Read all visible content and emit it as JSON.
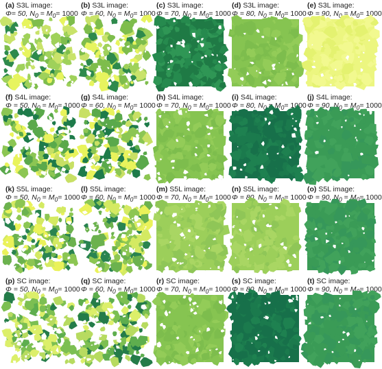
{
  "figure": {
    "panels": [
      {
        "id": "(a)",
        "label": "S3L image:",
        "phi": "Φ= 50,",
        "n": "N",
        "n_sub": "0",
        "eq1": " = ",
        "m": "M",
        "m_sub": "0",
        "eq2": "= 1000",
        "palette": "mixed3",
        "seed": 11,
        "dens": 0.5
      },
      {
        "id": "(b)",
        "label": "S3L  image:",
        "phi": "Φ = 60,",
        "n": "N",
        "n_sub": "0",
        "eq1": " = ",
        "m": "M",
        "m_sub": "0",
        "eq2": "= 1000",
        "palette": "mixed3",
        "seed": 12,
        "dens": 0.6
      },
      {
        "id": "(c)",
        "label": "S3L image:",
        "phi": "Φ = 70,",
        "n": "N",
        "n_sub": "0",
        "eq1": " = ",
        "m": "M",
        "m_sub": "0",
        "eq2": "= 1000",
        "palette": "dark",
        "seed": 13,
        "dens": 0.7
      },
      {
        "id": "(d)",
        "label": "S3L image:",
        "phi": "Φ = 80,",
        "n": "N",
        "n_sub": "0",
        "eq1": " = ",
        "m": "M",
        "m_sub": "0",
        "eq2": "= 1000",
        "palette": "medium",
        "seed": 14,
        "dens": 0.8
      },
      {
        "id": "(e)",
        "label": "S3L image:",
        "phi": "Φ = 90,",
        "n": "N",
        "n_sub": "0",
        "eq1": " = ",
        "m": "M",
        "m_sub": "0",
        "eq2": "= 1000",
        "palette": "yellow",
        "seed": 15,
        "dens": 0.9
      },
      {
        "id": "(f)",
        "label": "S4L image:",
        "phi": "Φ = 50,",
        "n": "N",
        "n_sub": "0",
        "eq1": " = ",
        "m": "M",
        "m_sub": "0",
        "eq2": "= 1000",
        "palette": "mixed4",
        "seed": 21,
        "dens": 0.5
      },
      {
        "id": "(g)",
        "label": "S4L image:",
        "phi": "Φ = 60,",
        "n": "N",
        "n_sub": "0",
        "eq1": " = ",
        "m": "M",
        "m_sub": "0",
        "eq2": "= 1000",
        "palette": "mixed4",
        "seed": 22,
        "dens": 0.6
      },
      {
        "id": "(h)",
        "label": "S4L image:",
        "phi": "Φ = 70,",
        "n": "N",
        "n_sub": "0",
        "eq1": " = ",
        "m": "M",
        "m_sub": "0",
        "eq2": "= 1000",
        "palette": "medium",
        "seed": 23,
        "dens": 0.7
      },
      {
        "id": "(i)",
        "label": "S4L image:",
        "phi": "Φ = 80,",
        "n": "N",
        "n_sub": "0",
        "eq1": " = ",
        "m": "M",
        "m_sub": "0",
        "eq2": "= 1000",
        "palette": "darkest",
        "seed": 24,
        "dens": 0.8
      },
      {
        "id": "(j)",
        "label": "S4L image:",
        "phi": "Φ = 90,",
        "n": "N",
        "n_sub": "0",
        "eq1": " = ",
        "m": "M",
        "m_sub": "0",
        "eq2": "= 1000",
        "palette": "green",
        "seed": 25,
        "dens": 0.9
      },
      {
        "id": "(k)",
        "label": "S5L image:",
        "phi": "Φ = 50,",
        "n": "N",
        "n_sub": "0",
        "eq1": " = ",
        "m": "M",
        "m_sub": "0",
        "eq2": "= 1000",
        "palette": "mixed5",
        "seed": 31,
        "dens": 0.5
      },
      {
        "id": "(l)",
        "label": "S5L image:",
        "phi": "Φ = 60,",
        "n": "N",
        "n_sub": "0",
        "eq1": " = ",
        "m": "M",
        "m_sub": "0",
        "eq2": "= 1000",
        "palette": "mixed5",
        "seed": 32,
        "dens": 0.6
      },
      {
        "id": "(m)",
        "label": "S5L image:",
        "phi": "Φ = 70,",
        "n": "N",
        "n_sub": "0",
        "eq1": " = ",
        "m": "M",
        "m_sub": "0",
        "eq2": "= 1000",
        "palette": "light",
        "seed": 33,
        "dens": 0.7
      },
      {
        "id": "(n)",
        "label": "S5L image:",
        "phi": "Φ = 80,",
        "n": "N",
        "n_sub": "0",
        "eq1": " = ",
        "m": "M",
        "m_sub": "0",
        "eq2": "= 1000",
        "palette": "light",
        "seed": 34,
        "dens": 0.8
      },
      {
        "id": "(o)",
        "label": "S5L image:",
        "phi": "Φ = 90,",
        "n": "N",
        "n_sub": "0",
        "eq1": " = ",
        "m": "M",
        "m_sub": "0",
        "eq2": "= 1000",
        "palette": "green",
        "seed": 35,
        "dens": 0.9
      },
      {
        "id": "(p)",
        "label": "SC image:",
        "phi": "Φ = 50,",
        "n": "N",
        "n_sub": "0",
        "eq1": " = ",
        "m": "M",
        "m_sub": "0",
        "eq2": "= 1000",
        "palette": "mixedc",
        "seed": 41,
        "dens": 0.5
      },
      {
        "id": "(q)",
        "label": "SC image:",
        "phi": "Φ = 60,",
        "n": "N",
        "n_sub": "0",
        "eq1": " = ",
        "m": "M",
        "m_sub": "0",
        "eq2": "= 1000",
        "palette": "mixedc",
        "seed": 42,
        "dens": 0.6
      },
      {
        "id": "(r)",
        "label": "SC image:",
        "phi": "Φ = 70,",
        "n": "N",
        "n_sub": "0",
        "eq1": " = ",
        "m": "M",
        "m_sub": "0",
        "eq2": "= 1000",
        "palette": "medium",
        "seed": 43,
        "dens": 0.7
      },
      {
        "id": "(s)",
        "label": "SC image:",
        "phi": "Φ = 80,",
        "n": "N",
        "n_sub": "0",
        "eq1": " = ",
        "m": "M",
        "m_sub": "0",
        "eq2": "= 1000",
        "palette": "darkest",
        "seed": 44,
        "dens": 0.8
      },
      {
        "id": "(t)",
        "label": "SC image:",
        "phi": "Φ = 90,",
        "n": "N",
        "n_sub": "0",
        "eq1": " = ",
        "m": "M",
        "m_sub": "0",
        "eq2": "= 1000",
        "palette": "green",
        "seed": 45,
        "dens": 0.9
      }
    ],
    "palettes": {
      "mixed3": [
        "#7ebd4c",
        "#2e8a4c",
        "#c9e36a",
        "#e7f45e",
        "#9fd15a"
      ],
      "dark": [
        "#1f7a45",
        "#268a4e",
        "#2f9655"
      ],
      "medium": [
        "#86c451",
        "#7dbd4d",
        "#93cc58"
      ],
      "yellow": [
        "#ecf680",
        "#e4f270",
        "#f2f98f"
      ],
      "mixed4": [
        "#1e7b4a",
        "#8cc653",
        "#c8e064",
        "#e9f35c",
        "#5aa94b"
      ],
      "darkest": [
        "#17704a",
        "#1b7a4d",
        "#1e8150"
      ],
      "green": [
        "#3a9b56",
        "#41a25b",
        "#36975a"
      ],
      "mixed5": [
        "#8cc653",
        "#d4ea62",
        "#6cb24e",
        "#2a8450",
        "#eaf25a"
      ],
      "light": [
        "#9ccf5a",
        "#a9d663",
        "#8fc657"
      ],
      "mixedc": [
        "#5eae4e",
        "#b7db60",
        "#247c49",
        "#dcef6a",
        "#7cbf52"
      ]
    },
    "background": "#ffffff"
  }
}
